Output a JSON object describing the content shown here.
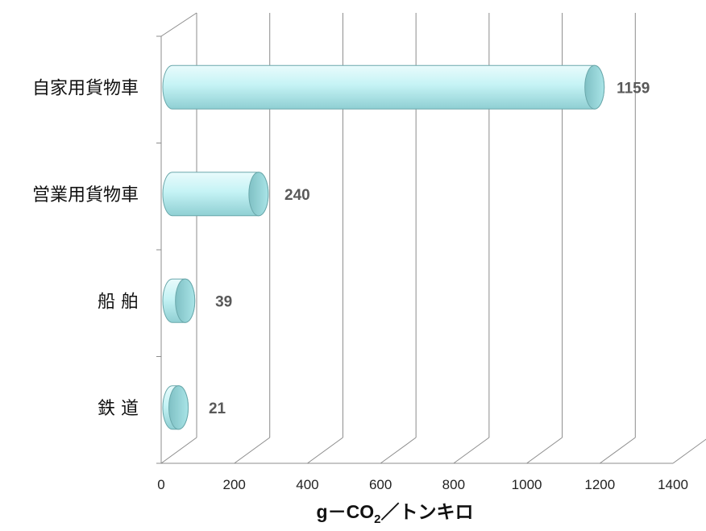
{
  "chart_data": {
    "type": "bar",
    "orientation": "horizontal",
    "style": "3d-cylinder",
    "categories": [
      "自家用貨物車",
      "営業用貨物車",
      "船 舶",
      "鉄 道"
    ],
    "values": [
      1159,
      240,
      39,
      21
    ],
    "data_labels": [
      "1159",
      "240",
      "39",
      "21"
    ],
    "xlabel_main": "g－CO",
    "xlabel_sub": "2",
    "xlabel_tail": "／トンキロ",
    "xlim": [
      0,
      1400
    ],
    "xticks": [
      0,
      200,
      400,
      600,
      800,
      1000,
      1200,
      1400
    ],
    "grid": true,
    "legend": "none",
    "bar_color": "#b8f0f2",
    "bar_edge_color": "#6aa8ab",
    "grid_color": "#8c8c8c"
  }
}
